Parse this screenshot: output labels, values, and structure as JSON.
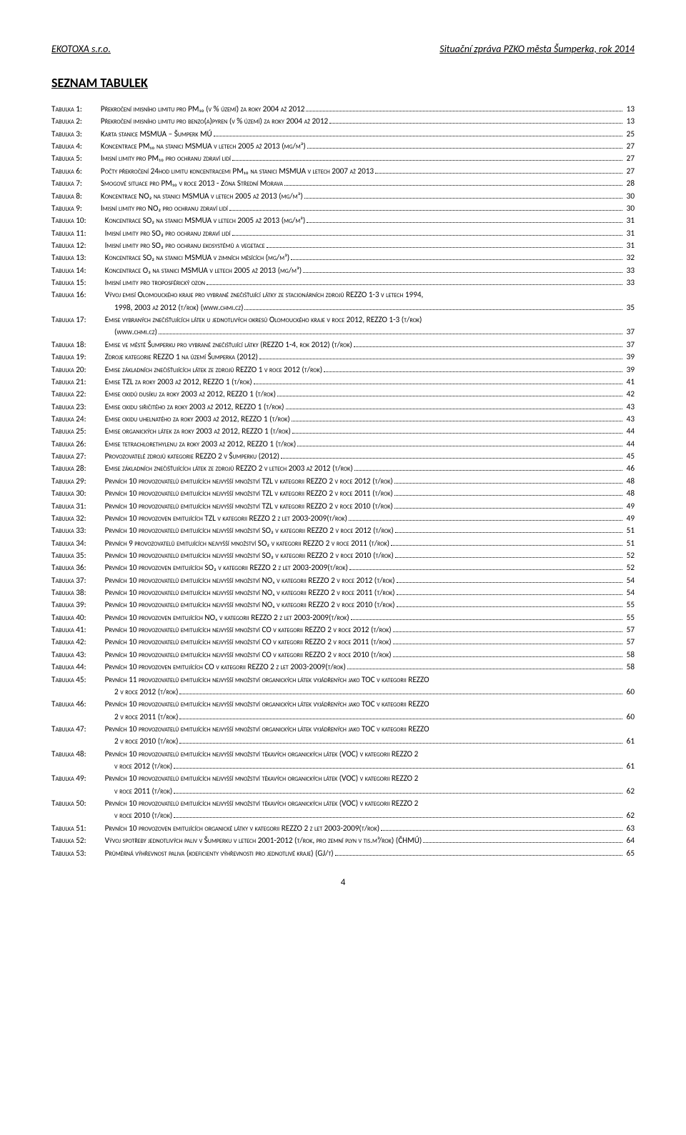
{
  "header": {
    "left": "EKOTOXA s.r.o.",
    "right": "Situační zpráva PZKO města Šumperka, rok 2014"
  },
  "section_title": "SEZNAM TABULEK",
  "page_number": "4",
  "toc": [
    {
      "label": "Tabulka 1:",
      "text": "Překročení imisního limitu pro PM₁₀ (v % území) za roky 2004 až 2012",
      "page": "13",
      "indent": 0
    },
    {
      "label": "Tabulka 2:",
      "text": "Překročení imisního limitu pro benzo(a)pyren (v % území) za roky 2004 až 2012",
      "page": "13",
      "indent": 0
    },
    {
      "label": "Tabulka 3:",
      "text": "Karta stanice MSMUA – Šumperk MÚ",
      "page": "25",
      "indent": 0
    },
    {
      "label": "Tabulka 4:",
      "text": "Koncentrace PM₁₀ na stanici MSMUA v letech 2005 až 2013 (µg/m³)",
      "page": "27",
      "indent": 0
    },
    {
      "label": "Tabulka 5:",
      "text": "Imisní limity pro PM₁₀ pro ochranu zdraví lidí",
      "page": "27",
      "indent": 0
    },
    {
      "label": "Tabulka 6:",
      "text": "Počty překročení 24hod limitu koncentracemi PM₁₀ na stanici MSMUA v letech 2007 až 2013",
      "page": "27",
      "indent": 0
    },
    {
      "label": "Tabulka 7:",
      "text": "Smogové situace pro PM₁₀ v roce 2013 - Zóna Střední Morava",
      "page": "28",
      "indent": 0
    },
    {
      "label": "Tabulka 8:",
      "text": "Koncentrace NO₂ na stanici MSMUA v letech 2005 až 2013 (µg/m³)",
      "page": "30",
      "indent": 0
    },
    {
      "label": "Tabulka 9:",
      "text": "Imisní limity pro NO₂ pro ochranu zdraví lidí",
      "page": "30",
      "indent": 0
    },
    {
      "label": "Tabulka 10:",
      "text": "Koncentrace SO₂ na stanici MSMUA v letech 2005 až 2013 (µg/m³)",
      "page": "31",
      "indent": 0
    },
    {
      "label": "Tabulka 11:",
      "text": "Imisní limity pro SO₂ pro ochranu zdraví lidí",
      "page": "31",
      "indent": 0
    },
    {
      "label": "Tabulka 12:",
      "text": "Imisní limity pro SO₂ pro ochranu ekosystémů a vegetace",
      "page": "31",
      "indent": 0
    },
    {
      "label": "Tabulka 13:",
      "text": "Koncentrace SO₂ na stanici MSMUA v zimních měsících (µg/m³)",
      "page": "32",
      "indent": 0
    },
    {
      "label": "Tabulka 14:",
      "text": "Koncentrace O₃ na stanici MSMUA v letech 2005 až 2013 (µg/m³)",
      "page": "33",
      "indent": 0
    },
    {
      "label": "Tabulka 15:",
      "text": "Imisní limity pro troposférický ozon",
      "page": "33",
      "indent": 0
    },
    {
      "label": "Tabulka 16:",
      "text": "Vývoj emisí Olomouckého kraje pro vybrané znečišťující látky ze stacionárních zdrojů REZZO 1-3 v letech 1994,",
      "page": "",
      "indent": 0
    },
    {
      "label": "",
      "text": "1998, 2003 až 2012 (t/rok) (www.chmi.cz)",
      "page": "35",
      "indent": 1
    },
    {
      "label": "Tabulka 17:",
      "text": "Emise vybraných znečišťujících látek u jednotlivých okresů Olomouckého kraje v roce 2012, REZZO 1-3 (t/rok)",
      "page": "",
      "indent": 0
    },
    {
      "label": "",
      "text": "(www.chmi.cz)",
      "page": "37",
      "indent": 1
    },
    {
      "label": "Tabulka 18:",
      "text": "Emise ve městě Šumperku pro vybrané znečišťující látky (REZZO 1-4, rok 2012) (t/rok)",
      "page": "37",
      "indent": 0
    },
    {
      "label": "Tabulka 19:",
      "text": "Zdroje kategorie REZZO 1 na území Šumperka (2012)",
      "page": "39",
      "indent": 0
    },
    {
      "label": "Tabulka 20:",
      "text": "Emise základních znečišťujících látek ze zdrojů REZZO 1 v roce 2012 (t/rok)",
      "page": "39",
      "indent": 0
    },
    {
      "label": "Tabulka 21:",
      "text": "Emise TZL za roky 2003 až 2012, REZZO 1 (t/rok)",
      "page": "41",
      "indent": 0
    },
    {
      "label": "Tabulka 22:",
      "text": "Emise oxidů dusíku za roky 2003 až 2012, REZZO 1 (t/rok)",
      "page": "42",
      "indent": 0
    },
    {
      "label": "Tabulka 23:",
      "text": "Emise oxidu siřičitého za roky 2003 až 2012, REZZO 1 (t/rok)",
      "page": "43",
      "indent": 0
    },
    {
      "label": "Tabulka 24:",
      "text": "Emise oxidu uhelnatého za roky 2003 až 2012, REZZO 1 (t/rok)",
      "page": "43",
      "indent": 0
    },
    {
      "label": "Tabulka 25:",
      "text": "Emise organických látek za roky 2003 až 2012, REZZO 1 (t/rok)",
      "page": "44",
      "indent": 0
    },
    {
      "label": "Tabulka 26:",
      "text": "Emise tetrachlorethylenu za roky 2003 až 2012, REZZO 1 (t/rok)",
      "page": "44",
      "indent": 0
    },
    {
      "label": "Tabulka 27:",
      "text": "Provozovatelé zdrojů kategorie REZZO 2 v Šumperku (2012)",
      "page": "45",
      "indent": 0
    },
    {
      "label": "Tabulka 28:",
      "text": "Emise základních znečišťujících látek ze zdrojů REZZO 2 v letech 2003 až 2012 (t/rok)",
      "page": "46",
      "indent": 0
    },
    {
      "label": "Tabulka 29:",
      "text": "Prvních 10 provozovatelů emitujících nejvyšší množství TZL v kategorii REZZO 2 v roce 2012 (t/rok)",
      "page": "48",
      "indent": 0
    },
    {
      "label": "Tabulka 30:",
      "text": "Prvních 10 provozovatelů emitujících nejvyšší množství TZL v kategorii REZZO 2 v roce 2011 (t/rok)",
      "page": "48",
      "indent": 0
    },
    {
      "label": "Tabulka 31:",
      "text": "Prvních 10 provozovatelů emitujících nejvyšší množství TZL v kategorii REZZO 2 v roce 2010 (t/rok)",
      "page": "49",
      "indent": 0
    },
    {
      "label": "Tabulka 32:",
      "text": "Prvních 10 provozoven emitujících TZL v kategorii REZZO 2 z let 2003-2009(t/rok)",
      "page": "49",
      "indent": 0
    },
    {
      "label": "Tabulka 33:",
      "text": "Prvních 10 provozovatelů emitujících nejvyšší množství SO₂ v kategorii REZZO 2 v roce 2012 (t/rok)",
      "page": "51",
      "indent": 0
    },
    {
      "label": "Tabulka 34:",
      "text": "Prvních 9 provozovatelů emitujících nejvyšší množství SO₂ v kategorii REZZO 2 v roce 2011 (t/rok)",
      "page": "51",
      "indent": 0
    },
    {
      "label": "Tabulka 35:",
      "text": "Prvních 10 provozovatelů emitujících nejvyšší množství SO₂ v kategorii REZZO 2 v roce 2010 (t/rok)",
      "page": "52",
      "indent": 0
    },
    {
      "label": "Tabulka 36:",
      "text": "Prvních 10 provozoven emitujících SO₂ v kategorii REZZO 2 z let 2003-2009(t/rok)",
      "page": "52",
      "indent": 0
    },
    {
      "label": "Tabulka 37:",
      "text": "Prvních 10 provozovatelů emitujících nejvyšší množství NOₓ v kategorii REZZO 2 v roce 2012 (t/rok)",
      "page": "54",
      "indent": 0
    },
    {
      "label": "Tabulka 38:",
      "text": "Prvních 10 provozovatelů emitujících nejvyšší množství NOₓ v kategorii REZZO 2 v roce 2011 (t/rok)",
      "page": "54",
      "indent": 0
    },
    {
      "label": "Tabulka 39:",
      "text": "Prvních 10 provozovatelů emitujících nejvyšší množství NOₓ v kategorii REZZO 2 v roce 2010 (t/rok)",
      "page": "55",
      "indent": 0
    },
    {
      "label": "Tabulka 40:",
      "text": "Prvních 10 provozoven emitujících NOₓ v kategorii REZZO 2 z let 2003-2009(t/rok)",
      "page": "55",
      "indent": 0
    },
    {
      "label": "Tabulka 41:",
      "text": "Prvních 10 provozovatelů emitujících nejvyšší množství CO v kategorii REZZO 2 v roce 2012 (t/rok)",
      "page": "57",
      "indent": 0
    },
    {
      "label": "Tabulka 42:",
      "text": "Prvních 10 provozovatelů emitujících nejvyšší množství CO v kategorii REZZO 2 v roce 2011 (t/rok)",
      "page": "57",
      "indent": 0
    },
    {
      "label": "Tabulka 43:",
      "text": "Prvních 10 provozovatelů emitujících nejvyšší množství CO v kategorii REZZO 2 v roce 2010 (t/rok)",
      "page": "58",
      "indent": 0
    },
    {
      "label": "Tabulka 44:",
      "text": "Prvních 10 provozoven emitujících CO v kategorii REZZO 2 z let 2003-2009(t/rok)",
      "page": "58",
      "indent": 0
    },
    {
      "label": "Tabulka 45:",
      "text": "Prvních 11 provozovatelů emitujících nejvyšší množství organických látek vyjádřených jako TOC v kategorii REZZO",
      "page": "",
      "indent": 0
    },
    {
      "label": "",
      "text": "2 v roce 2012 (t/rok)",
      "page": "60",
      "indent": 1
    },
    {
      "label": "Tabulka 46:",
      "text": "Prvních 10 provozovatelů emitujících nejvyšší množství organických látek vyjádřených jako TOC v kategorii REZZO",
      "page": "",
      "indent": 0
    },
    {
      "label": "",
      "text": "2 v roce 2011 (t/rok)",
      "page": "60",
      "indent": 1
    },
    {
      "label": "Tabulka 47:",
      "text": "Prvních 10 provozovatelů emitujících nejvyšší množství organických látek vyjádřených jako TOC v kategorii REZZO",
      "page": "",
      "indent": 0
    },
    {
      "label": "",
      "text": "2 v roce 2010 (t/rok)",
      "page": "61",
      "indent": 1
    },
    {
      "label": "Tabulka 48:",
      "text": "Prvních 10 provozovatelů emitujících nejvyšší množství těkavých organických látek (VOC) v kategorii REZZO 2",
      "page": "",
      "indent": 0
    },
    {
      "label": "",
      "text": "v roce 2012 (t/rok)",
      "page": "61",
      "indent": 1
    },
    {
      "label": "Tabulka 49:",
      "text": "Prvních 10 provozovatelů emitujících nejvyšší množství těkavých organických látek (VOC) v kategorii REZZO 2",
      "page": "",
      "indent": 0
    },
    {
      "label": "",
      "text": "v roce 2011 (t/rok)",
      "page": "62",
      "indent": 1
    },
    {
      "label": "Tabulka 50:",
      "text": "Prvních 10 provozovatelů emitujících nejvyšší množství těkavých organických látek (VOC) v kategorii REZZO 2",
      "page": "",
      "indent": 0
    },
    {
      "label": "",
      "text": "v roce 2010 (t/rok)",
      "page": "62",
      "indent": 1
    },
    {
      "label": "Tabulka 51:",
      "text": "Prvních 10 provozoven emitujících organické látky v kategorii REZZO 2 z let 2003-2009(t/rok)",
      "page": "63",
      "indent": 0
    },
    {
      "label": "Tabulka 52:",
      "text": "Vývoj spotřeby jednotlivých paliv v Šumperku v letech 2001-2012 (t/rok, pro zemní plyn v tis.m³/rok) (ČHMÚ)",
      "page": "64",
      "indent": 0
    },
    {
      "label": "Tabulka 53:",
      "text": "Průměrná výhřevnost paliva (koeficienty výhřevnosti pro jednotlivé kraje) (GJ/t)",
      "page": "65",
      "indent": 0
    }
  ]
}
